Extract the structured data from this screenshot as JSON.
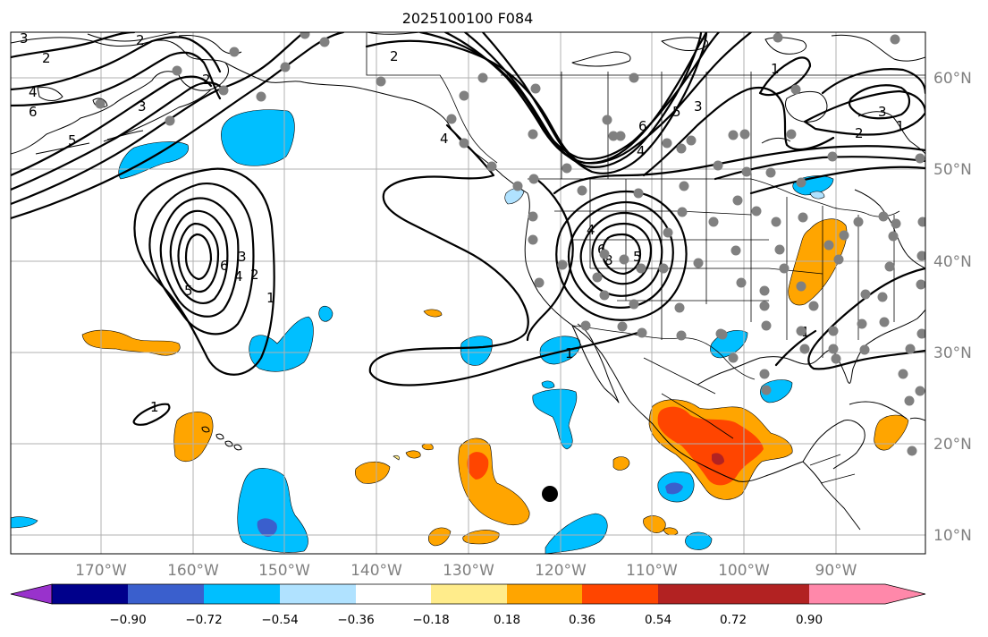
{
  "title": "2025100100 F084",
  "lon_labels": [
    "170°W",
    "160°W",
    "150°W",
    "140°W",
    "130°W",
    "120°W",
    "110°W",
    "100°W",
    "90°W"
  ],
  "lat_labels": [
    "60°N",
    "50°N",
    "40°N",
    "30°N",
    "20°N",
    "10°N"
  ],
  "colorbar": {
    "ticks": [
      "−0.90",
      "−0.72",
      "−0.54",
      "−0.36",
      "−0.18",
      "0.18",
      "0.36",
      "0.54",
      "0.72",
      "0.90"
    ],
    "colors": [
      "#9932cc",
      "#00008b",
      "#3a5fcd",
      "#00bfff",
      "#b0e2ff",
      "#ffffff",
      "#ffec8b",
      "#ffa500",
      "#ff4500",
      "#b22222",
      "#ff88aa"
    ]
  },
  "contour_labels": {
    "l_2a": "2",
    "l_3a": "3",
    "l_4a": "4",
    "l_6a": "6",
    "l_5a": "5",
    "l_2b": "2",
    "l_3b": "3",
    "l_2c": "2",
    "l_3c": "3",
    "l_6c": "6",
    "l_2d": "2",
    "l_4d": "4",
    "l_5d": "5",
    "l_1d": "1",
    "l_1e": "1",
    "l_2f": "2",
    "l_4f": "4",
    "l_6f": "6",
    "l_5f": "5",
    "l_3f": "3",
    "l_4g": "4",
    "l_6g": "6",
    "l_8g": "8",
    "l_5g": "5",
    "l_1h": "1",
    "l_1i": "1",
    "l_4j": "4",
    "l_3j": "3",
    "l_2j": "2",
    "l_1k": "1",
    "l_1l": "1"
  },
  "legend_colors": {
    "orange": "#ffa500",
    "red": "#ff4500",
    "darkred": "#b22222",
    "cyan": "#00bfff",
    "lightblue": "#b0e2ff",
    "blue": "#3a5fcd",
    "station": "#808080"
  }
}
